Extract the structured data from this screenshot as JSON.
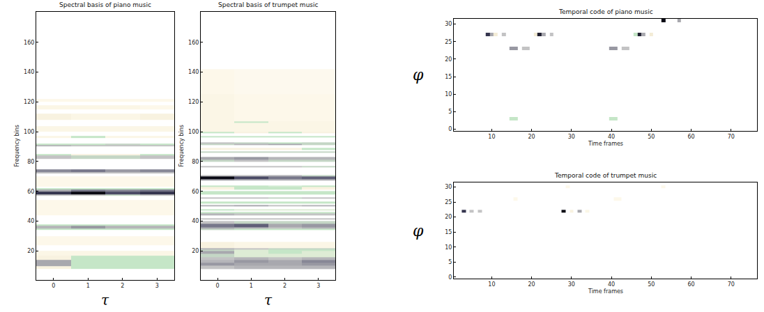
{
  "chart_data": [
    {
      "type": "heatmap",
      "title": "Spectral basis of piano music",
      "x_label": "τ",
      "y_label": "Frequency bins",
      "xlim": [
        -0.5,
        3.5
      ],
      "xticks": [
        0,
        1,
        2,
        3
      ],
      "ylim": [
        0.5,
        180.5
      ],
      "yticks": [
        20,
        40,
        60,
        80,
        100,
        120,
        140,
        160
      ],
      "zlim": [
        0,
        1
      ],
      "x": [
        0,
        1,
        2,
        3
      ],
      "rows": [
        {
          "y_range": [
            8,
            10
          ],
          "values": [
            0.15,
            0.4,
            0.4,
            0.4
          ]
        },
        {
          "y_range": [
            10,
            14
          ],
          "values": [
            0.6,
            0.4,
            0.4,
            0.4
          ]
        },
        {
          "y_range": [
            14,
            17
          ],
          "values": [
            0.15,
            0.4,
            0.4,
            0.4
          ]
        },
        {
          "y_range": [
            17,
            20
          ],
          "values": [
            0.12,
            0.12,
            0.12,
            0.12
          ]
        },
        {
          "y_range": [
            24,
            30
          ],
          "values": [
            0.1,
            0.1,
            0.1,
            0.1
          ]
        },
        {
          "y_range": [
            34,
            35
          ],
          "values": [
            0.4,
            0.4,
            0.4,
            0.4
          ]
        },
        {
          "y_range": [
            35,
            37
          ],
          "values": [
            0.55,
            0.65,
            0.55,
            0.55
          ]
        },
        {
          "y_range": [
            37,
            38
          ],
          "values": [
            0.4,
            0.4,
            0.4,
            0.4
          ]
        },
        {
          "y_range": [
            44,
            54
          ],
          "values": [
            0.1,
            0.1,
            0.1,
            0.1
          ]
        },
        {
          "y_range": [
            57,
            58
          ],
          "values": [
            0.5,
            0.5,
            0.45,
            0.5
          ]
        },
        {
          "y_range": [
            58,
            60
          ],
          "values": [
            0.9,
            1.0,
            0.85,
            0.9
          ]
        },
        {
          "y_range": [
            60,
            61
          ],
          "values": [
            0.6,
            0.75,
            0.7,
            0.75
          ]
        },
        {
          "y_range": [
            61,
            62
          ],
          "values": [
            0.4,
            0.4,
            0.4,
            0.4
          ]
        },
        {
          "y_range": [
            63,
            70
          ],
          "values": [
            0.1,
            0.1,
            0.1,
            0.1
          ]
        },
        {
          "y_range": [
            72,
            73
          ],
          "values": [
            0.5,
            0.5,
            0.5,
            0.5
          ]
        },
        {
          "y_range": [
            73,
            75
          ],
          "values": [
            0.7,
            0.75,
            0.65,
            0.7
          ]
        },
        {
          "y_range": [
            82,
            84
          ],
          "values": [
            0.5,
            0.45,
            0.45,
            0.5
          ]
        },
        {
          "y_range": [
            84,
            85
          ],
          "values": [
            0.4,
            0.15,
            0.15,
            0.4
          ]
        },
        {
          "y_range": [
            90,
            91
          ],
          "values": [
            0.55,
            0.5,
            0.5,
            0.5
          ]
        },
        {
          "y_range": [
            91,
            92
          ],
          "values": [
            0.4,
            0.4,
            0.45,
            0.4
          ]
        },
        {
          "y_range": [
            96,
            97
          ],
          "values": [
            0.12,
            0.4,
            0.12,
            0.12
          ]
        },
        {
          "y_range": [
            100,
            104
          ],
          "values": [
            0.12,
            0.12,
            0.12,
            0.12
          ]
        },
        {
          "y_range": [
            108,
            112
          ],
          "values": [
            0.15,
            0.12,
            0.12,
            0.15
          ]
        },
        {
          "y_range": [
            115,
            118
          ],
          "values": [
            0.12,
            0.12,
            0.12,
            0.1
          ]
        },
        {
          "y_range": [
            120,
            122
          ],
          "values": [
            0.1,
            0.1,
            0.1,
            0.1
          ]
        }
      ]
    },
    {
      "type": "heatmap",
      "title": "Spectral basis of trumpet music",
      "x_label": "τ",
      "y_label": "Frequency bins",
      "xlim": [
        -0.5,
        3.5
      ],
      "xticks": [
        0,
        1,
        2,
        3
      ],
      "ylim": [
        0.5,
        180.5
      ],
      "yticks": [
        20,
        40,
        60,
        80,
        100,
        120,
        140,
        160
      ],
      "zlim": [
        0,
        1
      ],
      "x": [
        0,
        1,
        2,
        3
      ],
      "rows": [
        {
          "y_range": [
            8,
            10
          ],
          "values": [
            0.5,
            0.55,
            0.55,
            0.55
          ]
        },
        {
          "y_range": [
            10,
            12
          ],
          "values": [
            0.65,
            0.6,
            0.6,
            0.65
          ]
        },
        {
          "y_range": [
            12,
            14
          ],
          "values": [
            0.55,
            0.65,
            0.6,
            0.7
          ]
        },
        {
          "y_range": [
            14,
            16
          ],
          "values": [
            0.5,
            0.55,
            0.5,
            0.55
          ]
        },
        {
          "y_range": [
            16,
            18
          ],
          "values": [
            0.45,
            0.3,
            0.3,
            0.3
          ]
        },
        {
          "y_range": [
            18,
            20
          ],
          "values": [
            0.6,
            0.3,
            0.4,
            0.3
          ]
        },
        {
          "y_range": [
            20,
            21
          ],
          "values": [
            0.45,
            0.3,
            0.4,
            0.4
          ]
        },
        {
          "y_range": [
            21,
            22
          ],
          "values": [
            0.55,
            0.5,
            0.45,
            0.45
          ]
        },
        {
          "y_range": [
            22,
            26
          ],
          "values": [
            0.15,
            0.12,
            0.12,
            0.12
          ]
        },
        {
          "y_range": [
            34,
            35
          ],
          "values": [
            0.45,
            0.4,
            0.4,
            0.4
          ]
        },
        {
          "y_range": [
            35,
            36
          ],
          "values": [
            0.6,
            0.55,
            0.5,
            0.55
          ]
        },
        {
          "y_range": [
            36,
            38
          ],
          "values": [
            0.75,
            0.8,
            0.6,
            0.65
          ]
        },
        {
          "y_range": [
            38,
            40
          ],
          "values": [
            0.5,
            0.45,
            0.45,
            0.45
          ]
        },
        {
          "y_range": [
            41,
            42
          ],
          "values": [
            0.5,
            0.5,
            0.5,
            0.5
          ]
        },
        {
          "y_range": [
            44,
            45
          ],
          "values": [
            0.55,
            0.5,
            0.5,
            0.5
          ]
        },
        {
          "y_range": [
            45,
            46
          ],
          "values": [
            0.4,
            0.4,
            0.4,
            0.4
          ]
        },
        {
          "y_range": [
            47,
            48
          ],
          "values": [
            0.4,
            0.3,
            0.3,
            0.3
          ]
        },
        {
          "y_range": [
            50,
            51
          ],
          "values": [
            0.55,
            0.6,
            0.5,
            0.55
          ]
        },
        {
          "y_range": [
            52,
            53
          ],
          "values": [
            0.4,
            0.4,
            0.4,
            0.4
          ]
        },
        {
          "y_range": [
            55,
            56
          ],
          "values": [
            0.5,
            0.5,
            0.45,
            0.5
          ]
        },
        {
          "y_range": [
            58,
            60
          ],
          "values": [
            0.4,
            0.4,
            0.4,
            0.4
          ]
        },
        {
          "y_range": [
            61,
            63
          ],
          "values": [
            0.15,
            0.4,
            0.4,
            0.15
          ]
        },
        {
          "y_range": [
            63,
            64
          ],
          "values": [
            0.4,
            0.4,
            0.35,
            0.4
          ]
        },
        {
          "y_range": [
            67,
            68
          ],
          "values": [
            0.6,
            0.55,
            0.55,
            0.55
          ]
        },
        {
          "y_range": [
            68,
            70
          ],
          "values": [
            1.0,
            0.85,
            0.75,
            0.8
          ]
        },
        {
          "y_range": [
            70,
            71
          ],
          "values": [
            0.5,
            0.5,
            0.55,
            0.45
          ]
        },
        {
          "y_range": [
            76,
            77
          ],
          "values": [
            0.5,
            0.5,
            0.5,
            0.45
          ]
        },
        {
          "y_range": [
            80,
            81
          ],
          "values": [
            0.45,
            0.5,
            0.45,
            0.45
          ]
        },
        {
          "y_range": [
            81,
            83
          ],
          "values": [
            0.6,
            0.65,
            0.55,
            0.55
          ]
        },
        {
          "y_range": [
            86,
            87
          ],
          "values": [
            0.45,
            0.45,
            0.45,
            0.45
          ]
        },
        {
          "y_range": [
            88,
            89
          ],
          "values": [
            0.15,
            0.15,
            0.15,
            0.4
          ]
        },
        {
          "y_range": [
            91,
            92
          ],
          "values": [
            0.45,
            0.55,
            0.6,
            0.45
          ]
        },
        {
          "y_range": [
            92,
            93
          ],
          "values": [
            0.5,
            0.45,
            0.4,
            0.45
          ]
        },
        {
          "y_range": [
            96,
            97
          ],
          "values": [
            0.4,
            0.4,
            0.4,
            0.4
          ]
        },
        {
          "y_range": [
            99,
            100
          ],
          "values": [
            0.4,
            0.15,
            0.4,
            0.15
          ]
        },
        {
          "y_range": [
            100,
            106
          ],
          "values": [
            0.12,
            0.12,
            0.12,
            0.12
          ]
        },
        {
          "y_range": [
            106,
            107
          ],
          "values": [
            0.12,
            0.4,
            0.12,
            0.12
          ]
        },
        {
          "y_range": [
            107,
            125
          ],
          "values": [
            0.12,
            0.1,
            0.1,
            0.1
          ]
        },
        {
          "y_range": [
            125,
            142
          ],
          "values": [
            0.1,
            0.08,
            0.08,
            0.08
          ]
        }
      ]
    },
    {
      "type": "heatmap",
      "title": "Temporal code of piano music",
      "x_label": "Time frames",
      "y_label": "φ",
      "xlim": [
        0.5,
        76.5
      ],
      "xticks": [
        10,
        20,
        30,
        40,
        50,
        60,
        70
      ],
      "ylim": [
        -0.5,
        31.5
      ],
      "yticks": [
        0,
        5,
        10,
        15,
        20,
        25,
        30
      ],
      "zlim": [
        0,
        1
      ],
      "cells": [
        {
          "x": 9,
          "y": 27,
          "value": 0.9
        },
        {
          "x": 10,
          "y": 27,
          "value": 0.6
        },
        {
          "x": 11,
          "y": 27,
          "value": 0.2
        },
        {
          "x": 13,
          "y": 27,
          "value": 0.5
        },
        {
          "x": 21,
          "y": 27,
          "value": 0.2
        },
        {
          "x": 22,
          "y": 27,
          "value": 0.95
        },
        {
          "x": 23,
          "y": 27,
          "value": 0.6
        },
        {
          "x": 25,
          "y": 27,
          "value": 0.5
        },
        {
          "x": 46,
          "y": 27,
          "value": 0.4
        },
        {
          "x": 47,
          "y": 27,
          "value": 0.95
        },
        {
          "x": 48,
          "y": 27,
          "value": 0.6
        },
        {
          "x": 50,
          "y": 27,
          "value": 0.2
        },
        {
          "x": 15,
          "y": 23,
          "value": 0.65
        },
        {
          "x": 16,
          "y": 23,
          "value": 0.65
        },
        {
          "x": 18,
          "y": 23,
          "value": 0.5
        },
        {
          "x": 19,
          "y": 23,
          "value": 0.5
        },
        {
          "x": 40,
          "y": 23,
          "value": 0.65
        },
        {
          "x": 41,
          "y": 23,
          "value": 0.65
        },
        {
          "x": 43,
          "y": 23,
          "value": 0.5
        },
        {
          "x": 44,
          "y": 23,
          "value": 0.5
        },
        {
          "x": 15,
          "y": 3,
          "value": 0.4
        },
        {
          "x": 16,
          "y": 3,
          "value": 0.4
        },
        {
          "x": 40,
          "y": 3,
          "value": 0.4
        },
        {
          "x": 41,
          "y": 3,
          "value": 0.4
        },
        {
          "x": 53,
          "y": 31,
          "value": 1.0
        },
        {
          "x": 57,
          "y": 31,
          "value": 0.6
        }
      ]
    },
    {
      "type": "heatmap",
      "title": "Temporal code of trumpet music",
      "x_label": "Time frames",
      "y_label": "φ",
      "xlim": [
        0.5,
        76.5
      ],
      "xticks": [
        10,
        20,
        30,
        40,
        50,
        60,
        70
      ],
      "ylim": [
        -0.5,
        31.5
      ],
      "yticks": [
        0,
        5,
        10,
        15,
        20,
        25,
        30
      ],
      "zlim": [
        0,
        1
      ],
      "cells": [
        {
          "x": 3,
          "y": 22,
          "value": 0.9
        },
        {
          "x": 5,
          "y": 22,
          "value": 0.5
        },
        {
          "x": 7,
          "y": 22,
          "value": 0.5
        },
        {
          "x": 28,
          "y": 22,
          "value": 1.0
        },
        {
          "x": 30,
          "y": 22,
          "value": 0.15
        },
        {
          "x": 32,
          "y": 22,
          "value": 0.6
        },
        {
          "x": 34,
          "y": 22,
          "value": 0.12
        },
        {
          "x": 16,
          "y": 26,
          "value": 0.1
        },
        {
          "x": 41,
          "y": 26,
          "value": 0.1
        },
        {
          "x": 42,
          "y": 26,
          "value": 0.1
        },
        {
          "x": 29,
          "y": 30,
          "value": 0.1
        },
        {
          "x": 53,
          "y": 30,
          "value": 0.1
        }
      ]
    }
  ]
}
